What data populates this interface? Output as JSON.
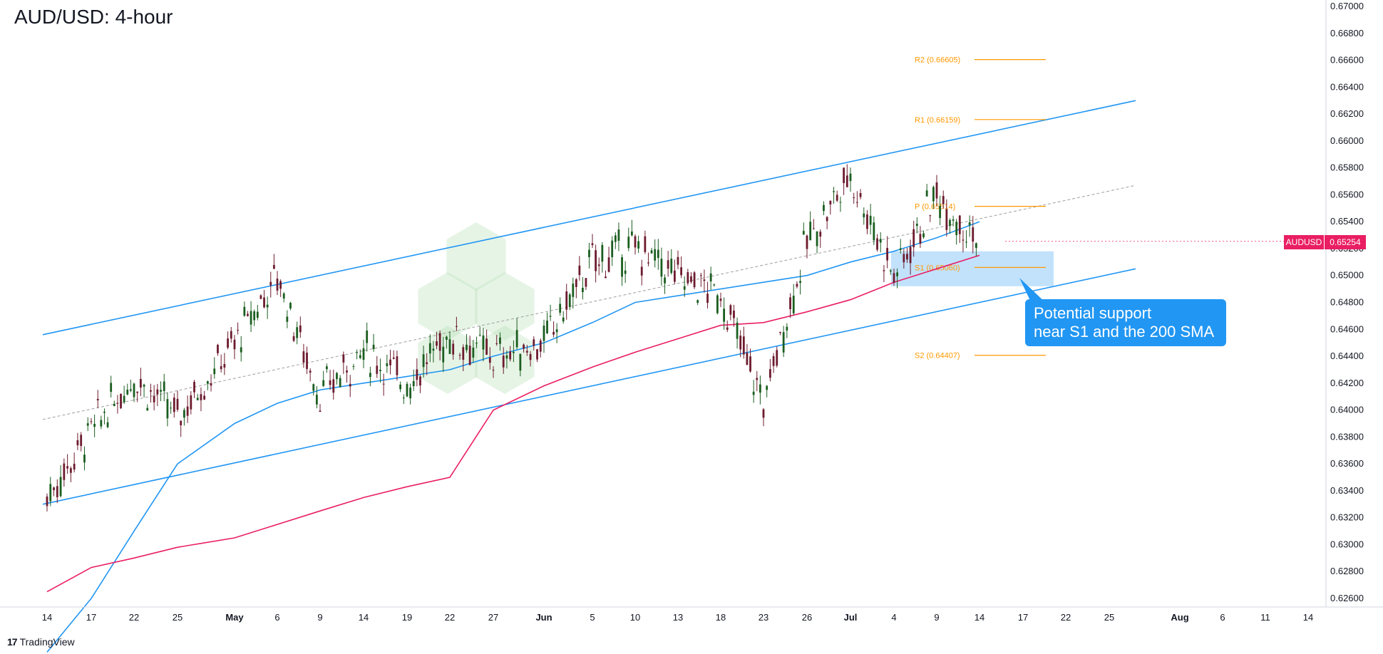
{
  "header": {
    "title": "AUD/USD: 4-hour"
  },
  "footer": {
    "brand": "TradingView"
  },
  "callout": {
    "line1": "Potential support",
    "line2": "near S1 and the 200 SMA"
  },
  "price_tag": {
    "symbol": "AUDUSD",
    "value": "0.65254"
  },
  "colors": {
    "up_candle": "#1b5e20",
    "down_candle": "#6d1b2e",
    "sma_100": "#2196f3",
    "sma_200": "#e91e63",
    "channel": "#2196f3",
    "pivot_levels": "#ff9800",
    "support_zone": "#90caf9",
    "callout": "#2196f3"
  },
  "chart_data": {
    "type": "line",
    "subtype": "candlestick",
    "title": "AUD/USD: 4-hour",
    "symbol": "AUDUSD",
    "last_price": 0.65254,
    "ylim": [
      0.626,
      0.67
    ],
    "y_ticks": [
      "0.67000",
      "0.66800",
      "0.66600",
      "0.66400",
      "0.66200",
      "0.66000",
      "0.65800",
      "0.65600",
      "0.65400",
      "0.65200",
      "0.65000",
      "0.64800",
      "0.64600",
      "0.64400",
      "0.64200",
      "0.64000",
      "0.63800",
      "0.63600",
      "0.63400",
      "0.63200",
      "0.63000",
      "0.62800",
      "0.62600"
    ],
    "x_ticks": [
      "14",
      "17",
      "22",
      "25",
      "May",
      "6",
      "9",
      "14",
      "19",
      "22",
      "27",
      "Jun",
      "5",
      "10",
      "13",
      "18",
      "23",
      "26",
      "Jul",
      "4",
      "9",
      "14",
      "17",
      "22",
      "25",
      "Aug",
      "6",
      "11",
      "14"
    ],
    "grid": false,
    "series": [
      {
        "name": "AUDUSD",
        "x": [
          "14",
          "17",
          "22",
          "25",
          "May",
          "6",
          "9",
          "14",
          "19",
          "22",
          "27",
          "Jun",
          "5",
          "10",
          "13",
          "18",
          "23",
          "26",
          "Jul",
          "4",
          "9",
          "14"
        ],
        "values": [
          0.6335,
          0.6385,
          0.6425,
          0.6395,
          0.645,
          0.65,
          0.641,
          0.6445,
          0.642,
          0.6455,
          0.644,
          0.645,
          0.651,
          0.652,
          0.65,
          0.6485,
          0.6405,
          0.6525,
          0.6575,
          0.65,
          0.656,
          0.6525
        ]
      },
      {
        "name": "100 SMA",
        "x": [
          "14",
          "17",
          "22",
          "25",
          "May",
          "6",
          "9",
          "14",
          "19",
          "22",
          "27",
          "Jun",
          "5",
          "10",
          "13",
          "18",
          "23",
          "26",
          "Jul",
          "4",
          "9",
          "14"
        ],
        "values": [
          0.622,
          0.626,
          0.631,
          0.636,
          0.639,
          0.6405,
          0.6415,
          0.642,
          0.6425,
          0.643,
          0.644,
          0.645,
          0.6465,
          0.648,
          0.6485,
          0.649,
          0.6495,
          0.65,
          0.651,
          0.6518,
          0.6528,
          0.654
        ]
      },
      {
        "name": "200 SMA",
        "x": [
          "14",
          "17",
          "22",
          "25",
          "May",
          "6",
          "9",
          "14",
          "19",
          "22",
          "27",
          "Jun",
          "5",
          "10",
          "13",
          "18",
          "23",
          "26",
          "Jul",
          "4",
          "9",
          "14"
        ],
        "values": [
          0.6265,
          0.6283,
          0.629,
          0.6298,
          0.6305,
          0.6315,
          0.6325,
          0.6335,
          0.6343,
          0.635,
          0.64,
          0.6418,
          0.6432,
          0.6443,
          0.6453,
          0.6463,
          0.6465,
          0.6473,
          0.6482,
          0.6495,
          0.6505,
          0.6515
        ]
      }
    ],
    "pivot_levels": [
      {
        "label": "R2 (0.66605)",
        "value": 0.66605
      },
      {
        "label": "R1 (0.66159)",
        "value": 0.66159
      },
      {
        "label": "P (0.65514)",
        "value": 0.65514
      },
      {
        "label": "S1 (0.65060)",
        "value": 0.6506
      },
      {
        "label": "S2 (0.64407)",
        "value": 0.64407
      }
    ],
    "channel": {
      "upper": [
        {
          "x": "14",
          "y": 0.6456
        },
        {
          "x": "25",
          "y": 0.663
        }
      ],
      "lower": [
        {
          "x": "14",
          "y": 0.633
        },
        {
          "x": "25",
          "y": 0.6505
        }
      ],
      "mid": [
        {
          "x": "14",
          "y": 0.6393
        },
        {
          "x": "25",
          "y": 0.6567
        }
      ]
    },
    "support_zone": {
      "from": 0.6492,
      "to": 0.6518
    },
    "annotation": "Potential support near S1 and the 200 SMA"
  }
}
